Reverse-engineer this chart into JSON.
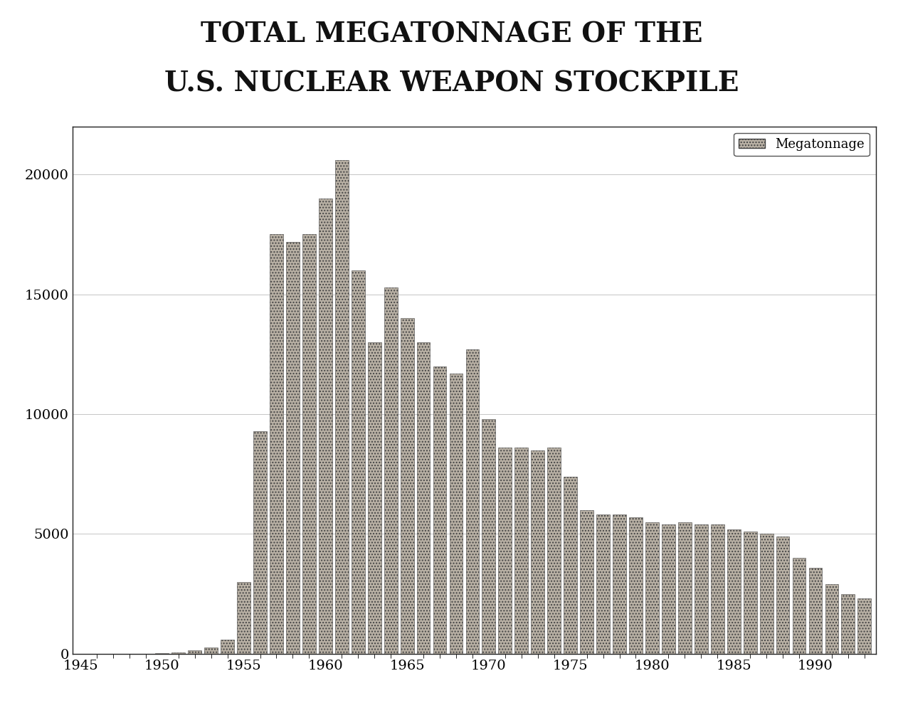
{
  "title_line1": "TOTAL MEGATONNAGE OF THE",
  "title_line2": "U.S. NUCLEAR WEAPON STOCKPILE",
  "legend_label": "Megatonnage",
  "background_color": "#ffffff",
  "plot_background": "#ffffff",
  "bar_color": "#b8b0a4",
  "bar_edge_color": "#444444",
  "years": [
    1945,
    1946,
    1947,
    1948,
    1949,
    1950,
    1951,
    1952,
    1953,
    1954,
    1955,
    1956,
    1957,
    1958,
    1959,
    1960,
    1961,
    1962,
    1963,
    1964,
    1965,
    1966,
    1967,
    1968,
    1969,
    1970,
    1971,
    1972,
    1973,
    1974,
    1975,
    1976,
    1977,
    1978,
    1979,
    1980,
    1981,
    1982,
    1983,
    1984,
    1985,
    1986,
    1987,
    1988,
    1989,
    1990,
    1991,
    1992,
    1993
  ],
  "values": [
    0,
    0,
    0,
    1,
    5,
    18,
    60,
    150,
    250,
    600,
    3000,
    9300,
    17500,
    17200,
    17500,
    19000,
    20600,
    16000,
    13000,
    15300,
    14000,
    13000,
    12000,
    11700,
    12700,
    9800,
    8600,
    8600,
    8500,
    8600,
    7400,
    6000,
    5800,
    5800,
    5700,
    5500,
    5400,
    5500,
    5400,
    5400,
    5200,
    5100,
    5000,
    4900,
    4000,
    3600,
    2900,
    2500,
    2300
  ],
  "xlim": [
    1944.5,
    1993.7
  ],
  "ylim": [
    0,
    22000
  ],
  "yticks": [
    0,
    5000,
    10000,
    15000,
    20000
  ],
  "xtick_years": [
    1945,
    1950,
    1955,
    1960,
    1965,
    1970,
    1975,
    1980,
    1985,
    1990
  ],
  "title_fontsize": 28,
  "axis_tick_fontsize": 14,
  "legend_fontsize": 13
}
